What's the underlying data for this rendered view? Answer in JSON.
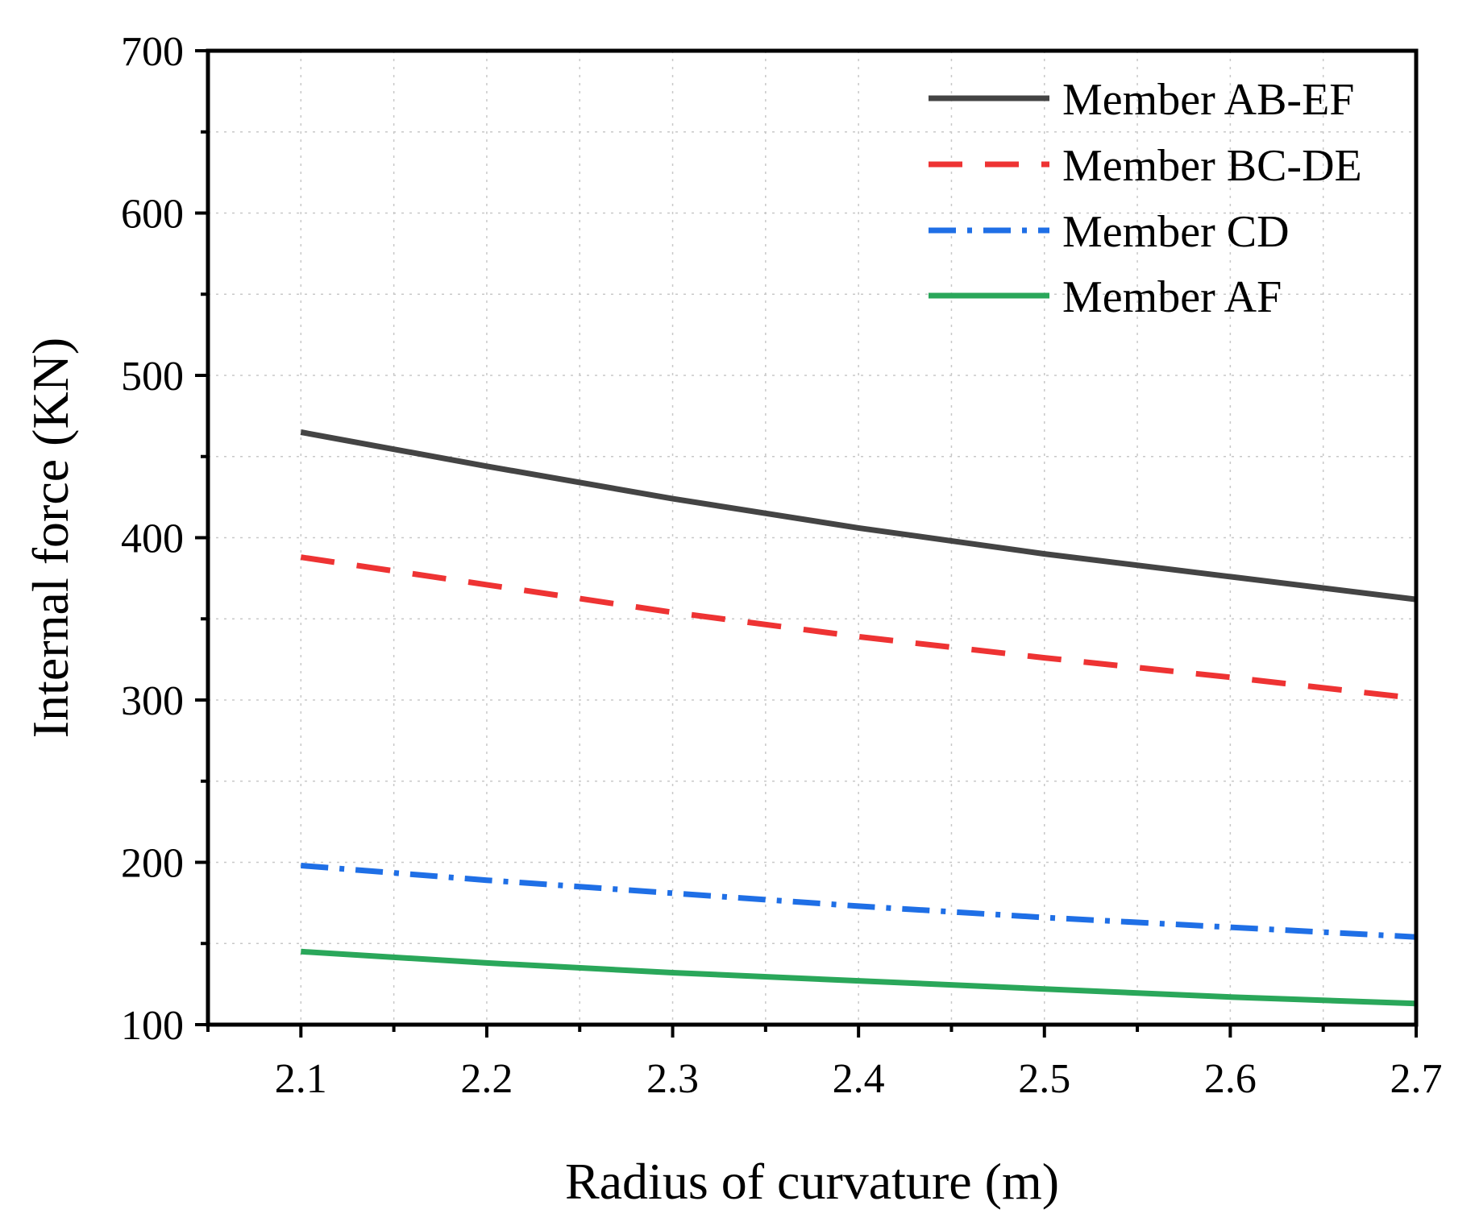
{
  "chart_data": {
    "type": "line",
    "title": "",
    "xlabel": "Radius of curvature (m)",
    "ylabel": "Internal force (KN)",
    "xlim": [
      2.05,
      2.7
    ],
    "ylim": [
      100,
      700
    ],
    "x_ticks": [
      2.1,
      2.2,
      2.3,
      2.4,
      2.5,
      2.6,
      2.7
    ],
    "x_tick_labels": [
      "2.1",
      "2.2",
      "2.3",
      "2.4",
      "2.5",
      "2.6",
      "2.7"
    ],
    "y_ticks": [
      100,
      200,
      300,
      400,
      500,
      600,
      700
    ],
    "y_tick_labels": [
      "100",
      "200",
      "300",
      "400",
      "500",
      "600",
      "700"
    ],
    "grid": true,
    "legend_position": "top-right",
    "x": [
      2.1,
      2.2,
      2.3,
      2.4,
      2.5,
      2.6,
      2.7
    ],
    "series": [
      {
        "name": "Member AB-EF",
        "values": [
          465,
          444,
          424,
          406,
          390,
          376,
          362
        ],
        "color": "#444444",
        "style": "solid"
      },
      {
        "name": "Member BC-DE",
        "values": [
          388,
          371,
          354,
          339,
          326,
          314,
          301
        ],
        "color": "#ee3333",
        "style": "dashed"
      },
      {
        "name": "Member CD",
        "values": [
          198,
          189,
          181,
          173,
          166,
          160,
          154
        ],
        "color": "#1f6fe6",
        "style": "dashdot"
      },
      {
        "name": "Member AF",
        "values": [
          145,
          138,
          132,
          127,
          122,
          117,
          113
        ],
        "color": "#2aa75a",
        "style": "solid"
      }
    ]
  }
}
